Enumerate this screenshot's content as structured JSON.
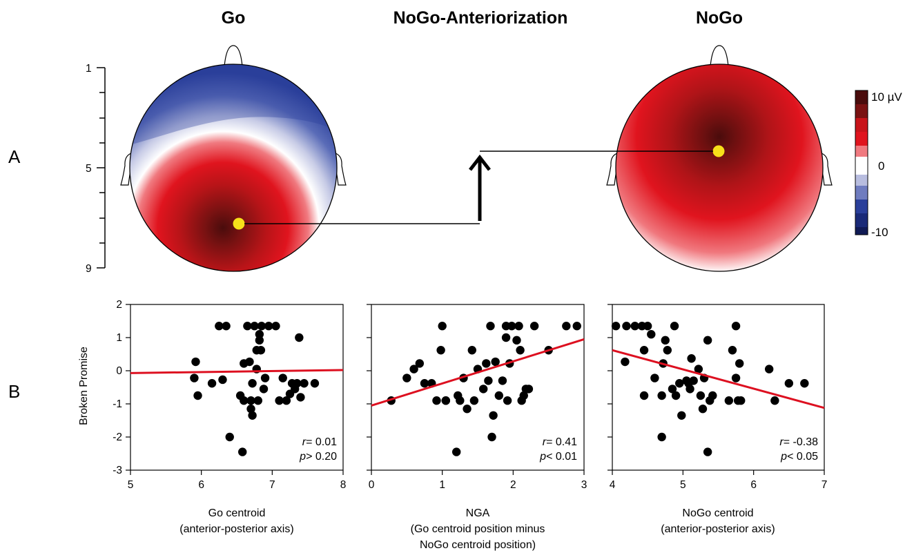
{
  "titles": {
    "go": "Go",
    "nga": "NoGo-Anteriorization",
    "nogo": "NoGo"
  },
  "panel_labels": {
    "a": "A",
    "b": "B"
  },
  "position_axis": {
    "ticks": [
      "1",
      "5",
      "9"
    ]
  },
  "colorbar": {
    "max_label": "10 µV",
    "zero_label": "0",
    "min_label": "-10"
  },
  "colors": {
    "positive_dark": "#4a0c0c",
    "positive": "#e0141e",
    "negative": "#2a3f9a",
    "negative_dark": "#101a55",
    "centroid": "#f7e01a",
    "regression": "#dd1020",
    "points": "#000000"
  },
  "topomaps": {
    "go": {
      "centroid_position": 7.3
    },
    "nogo": {
      "centroid_position": 4.9
    }
  },
  "shared_ylabel": "Broken Promise",
  "plots": [
    {
      "x_label_lines": [
        "Go centroid",
        "(anterior-posterior axis)"
      ],
      "r_prefix": "r",
      "r_value": "= 0.01",
      "p_prefix": "p",
      "p_value": "> 0.20"
    },
    {
      "x_label_lines": [
        "NGA",
        "(Go centroid position minus",
        "NoGo centroid position)"
      ],
      "r_prefix": "r",
      "r_value": "= 0.41",
      "p_prefix": "p",
      "p_value": "< 0.01"
    },
    {
      "x_label_lines": [
        "NoGo centroid",
        "(anterior-posterior axis)"
      ],
      "r_prefix": "r",
      "r_value": "= -0.38",
      "p_prefix": "p",
      "p_value": "< 0.05"
    }
  ],
  "chart_data": [
    {
      "type": "scatter",
      "title": "Go",
      "xlabel": "Go centroid (anterior-posterior axis)",
      "ylabel": "Broken Promise",
      "xlim": [
        5,
        8
      ],
      "ylim": [
        -3,
        2
      ],
      "xticks": [
        5,
        6,
        7,
        8
      ],
      "yticks": [
        -3,
        -2,
        -1,
        0,
        1,
        2
      ],
      "regression": {
        "x": [
          5,
          8
        ],
        "y": [
          -0.07,
          0.02
        ]
      },
      "points": [
        [
          5.92,
          0.27
        ],
        [
          5.9,
          -0.22
        ],
        [
          5.95,
          -0.75
        ],
        [
          6.15,
          -0.38
        ],
        [
          6.25,
          1.35
        ],
        [
          6.3,
          -0.27
        ],
        [
          6.35,
          1.35
        ],
        [
          6.4,
          -2.0
        ],
        [
          6.55,
          -0.75
        ],
        [
          6.6,
          0.22
        ],
        [
          6.6,
          -0.9
        ],
        [
          6.58,
          -2.45
        ],
        [
          6.65,
          1.35
        ],
        [
          6.68,
          0.27
        ],
        [
          6.7,
          -0.9
        ],
        [
          6.72,
          -0.38
        ],
        [
          6.75,
          1.35
        ],
        [
          6.78,
          0.62
        ],
        [
          6.78,
          0.05
        ],
        [
          6.8,
          -0.9
        ],
        [
          6.82,
          1.1
        ],
        [
          6.82,
          0.92
        ],
        [
          6.84,
          0.62
        ],
        [
          6.85,
          1.35
        ],
        [
          6.88,
          -0.55
        ],
        [
          6.9,
          -0.22
        ],
        [
          6.95,
          1.35
        ],
        [
          7.05,
          1.35
        ],
        [
          7.1,
          -0.9
        ],
        [
          7.15,
          -0.22
        ],
        [
          7.2,
          -0.9
        ],
        [
          7.25,
          -0.7
        ],
        [
          7.28,
          -0.38
        ],
        [
          7.32,
          -0.55
        ],
        [
          7.35,
          -0.38
        ],
        [
          7.38,
          1.0
        ],
        [
          7.4,
          -0.8
        ],
        [
          7.45,
          -0.38
        ],
        [
          7.6,
          -0.38
        ],
        [
          6.7,
          -1.15
        ],
        [
          6.72,
          -1.35
        ]
      ]
    },
    {
      "type": "scatter",
      "title": "NoGo-Anteriorization",
      "xlabel": "NGA (Go centroid position minus NoGo centroid position)",
      "ylabel": "Broken Promise",
      "xlim": [
        0,
        3
      ],
      "ylim": [
        -3,
        2
      ],
      "xticks": [
        0,
        1,
        2,
        3
      ],
      "yticks": [
        -3,
        -2,
        -1,
        0,
        1,
        2
      ],
      "regression": {
        "x": [
          0,
          3
        ],
        "y": [
          -1.05,
          0.95
        ]
      },
      "points": [
        [
          0.28,
          -0.9
        ],
        [
          0.5,
          -0.22
        ],
        [
          0.6,
          0.05
        ],
        [
          0.68,
          0.22
        ],
        [
          0.75,
          -0.38
        ],
        [
          0.85,
          -0.38
        ],
        [
          0.92,
          -0.9
        ],
        [
          0.98,
          0.62
        ],
        [
          1.0,
          1.35
        ],
        [
          1.05,
          -0.9
        ],
        [
          1.2,
          -2.45
        ],
        [
          1.22,
          -0.75
        ],
        [
          1.25,
          -0.9
        ],
        [
          1.3,
          -0.22
        ],
        [
          1.35,
          -1.15
        ],
        [
          1.42,
          0.62
        ],
        [
          1.45,
          -0.9
        ],
        [
          1.5,
          0.05
        ],
        [
          1.58,
          -0.55
        ],
        [
          1.62,
          0.22
        ],
        [
          1.65,
          -0.3
        ],
        [
          1.68,
          1.35
        ],
        [
          1.7,
          -2.0
        ],
        [
          1.72,
          -1.35
        ],
        [
          1.75,
          0.27
        ],
        [
          1.8,
          -0.75
        ],
        [
          1.85,
          -0.3
        ],
        [
          1.9,
          1.35
        ],
        [
          1.9,
          1.0
        ],
        [
          1.92,
          -0.9
        ],
        [
          1.95,
          0.22
        ],
        [
          1.98,
          1.35
        ],
        [
          2.05,
          0.92
        ],
        [
          2.08,
          1.35
        ],
        [
          2.1,
          0.62
        ],
        [
          2.12,
          -0.9
        ],
        [
          2.15,
          -0.75
        ],
        [
          2.18,
          -0.55
        ],
        [
          2.22,
          -0.55
        ],
        [
          2.3,
          1.35
        ],
        [
          2.5,
          0.62
        ],
        [
          2.75,
          1.35
        ],
        [
          2.9,
          1.35
        ],
        [
          1.05,
          -0.9
        ]
      ]
    },
    {
      "type": "scatter",
      "title": "NoGo",
      "xlabel": "NoGo centroid (anterior-posterior axis)",
      "ylabel": "Broken Promise",
      "xlim": [
        4,
        7
      ],
      "ylim": [
        -3,
        2
      ],
      "xticks": [
        4,
        5,
        6,
        7
      ],
      "yticks": [
        -3,
        -2,
        -1,
        0,
        1,
        2
      ],
      "regression": {
        "x": [
          4,
          7
        ],
        "y": [
          0.62,
          -1.12
        ]
      },
      "points": [
        [
          4.05,
          1.35
        ],
        [
          4.18,
          0.27
        ],
        [
          4.2,
          1.35
        ],
        [
          4.32,
          1.35
        ],
        [
          4.42,
          1.35
        ],
        [
          4.45,
          0.62
        ],
        [
          4.45,
          -0.75
        ],
        [
          4.5,
          1.35
        ],
        [
          4.55,
          1.1
        ],
        [
          4.6,
          -0.22
        ],
        [
          4.7,
          -0.75
        ],
        [
          4.72,
          0.22
        ],
        [
          4.75,
          0.92
        ],
        [
          4.78,
          0.62
        ],
        [
          4.85,
          -0.55
        ],
        [
          4.88,
          1.35
        ],
        [
          4.9,
          -0.75
        ],
        [
          4.95,
          -0.38
        ],
        [
          4.98,
          -1.35
        ],
        [
          5.05,
          -0.3
        ],
        [
          5.1,
          -0.55
        ],
        [
          5.12,
          0.37
        ],
        [
          5.15,
          -0.3
        ],
        [
          5.22,
          0.05
        ],
        [
          5.25,
          -0.75
        ],
        [
          5.28,
          -1.15
        ],
        [
          5.3,
          -0.22
        ],
        [
          5.35,
          -2.45
        ],
        [
          5.35,
          0.92
        ],
        [
          5.38,
          -0.9
        ],
        [
          5.42,
          -0.75
        ],
        [
          5.65,
          -0.9
        ],
        [
          5.7,
          0.62
        ],
        [
          5.75,
          1.35
        ],
        [
          5.75,
          -0.22
        ],
        [
          5.78,
          -0.9
        ],
        [
          5.8,
          0.22
        ],
        [
          5.82,
          -0.9
        ],
        [
          6.22,
          0.05
        ],
        [
          6.3,
          -0.9
        ],
        [
          6.5,
          -0.38
        ],
        [
          6.72,
          -0.38
        ],
        [
          4.7,
          -2.0
        ],
        [
          5.08,
          -0.38
        ]
      ]
    }
  ]
}
